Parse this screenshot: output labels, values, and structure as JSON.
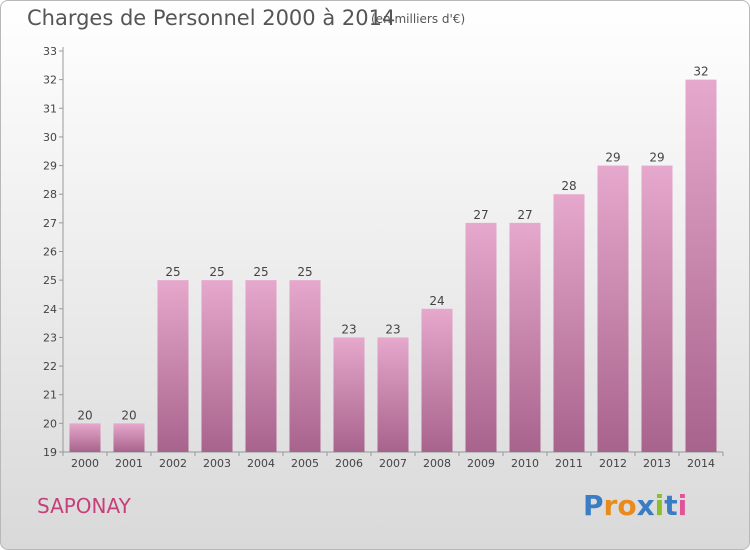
{
  "title": "Charges de Personnel 2000 à 2014",
  "subtitle": "(en milliers d'€)",
  "place": "SAPONAY",
  "logo": "Proxiti",
  "colors": {
    "bar_top": "#e6a8cc",
    "bar_bottom": "#a8638c",
    "place_text": "#c73f7a"
  },
  "chart_data": {
    "type": "bar",
    "categories": [
      "2000",
      "2001",
      "2002",
      "2003",
      "2004",
      "2005",
      "2006",
      "2007",
      "2008",
      "2009",
      "2010",
      "2011",
      "2012",
      "2013",
      "2014"
    ],
    "values": [
      20,
      20,
      25,
      25,
      25,
      25,
      23,
      23,
      24,
      27,
      27,
      28,
      29,
      29,
      32
    ],
    "data_labels": [
      "20",
      "20",
      "25",
      "25",
      "25",
      "25",
      "23",
      "23",
      "24",
      "27",
      "27",
      "28",
      "29",
      "29",
      "32"
    ],
    "yticks": [
      "19",
      "20",
      "21",
      "22",
      "23",
      "24",
      "25",
      "26",
      "27",
      "28",
      "29",
      "30",
      "31",
      "32",
      "33"
    ],
    "ylim": [
      19,
      33
    ],
    "grid": false
  }
}
